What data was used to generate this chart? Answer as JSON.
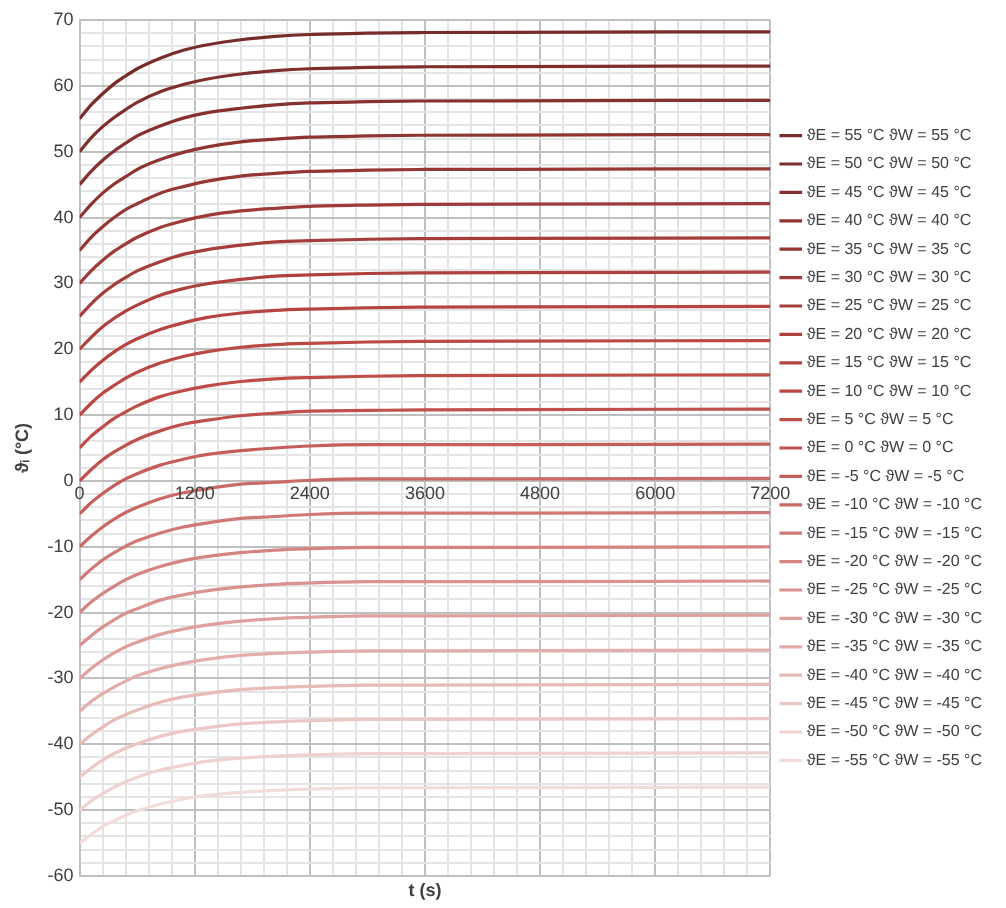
{
  "chart_data": {
    "type": "line",
    "xlabel": "t (s)",
    "ylabel": "ϑᵢ (°C)",
    "legend": "right",
    "grid": true,
    "marker": "none",
    "line_style": "solid",
    "x": [
      0,
      120,
      240,
      360,
      480,
      600,
      840,
      1080,
      1320,
      1680,
      2040,
      2400,
      3000,
      3600,
      7200
    ],
    "xlim": [
      0,
      7200
    ],
    "ylim": [
      -60,
      70
    ],
    "xticks": [
      0,
      {
        "value": 240,
        "label": null
      },
      {
        "value": 480,
        "label": null
      },
      {
        "value": 720,
        "label": null
      },
      {
        "value": 960,
        "label": null
      },
      1200,
      {
        "value": 1440,
        "label": null
      },
      {
        "value": 1680,
        "label": null
      },
      {
        "value": 1920,
        "label": null
      },
      {
        "value": 2160,
        "label": null
      },
      2400,
      {
        "value": 2640,
        "label": null
      },
      {
        "value": 2880,
        "label": null
      },
      {
        "value": 3120,
        "label": null
      },
      {
        "value": 3360,
        "label": null
      },
      3600,
      {
        "value": 3840,
        "label": null
      },
      {
        "value": 4080,
        "label": null
      },
      {
        "value": 4320,
        "label": null
      },
      {
        "value": 4560,
        "label": null
      },
      4800,
      {
        "value": 5040,
        "label": null
      },
      {
        "value": 5280,
        "label": null
      },
      {
        "value": 5520,
        "label": null
      },
      {
        "value": 5760,
        "label": null
      },
      6000,
      {
        "value": 6240,
        "label": null
      },
      {
        "value": 6480,
        "label": null
      },
      {
        "value": 6720,
        "label": null
      },
      {
        "value": 6960,
        "label": null
      },
      7200
    ],
    "yticks": [
      -60,
      {
        "value": -58,
        "label": null
      },
      {
        "value": -56,
        "label": null
      },
      {
        "value": -54,
        "label": null
      },
      {
        "value": -52,
        "label": null
      },
      -50,
      {
        "value": -48,
        "label": null
      },
      {
        "value": -46,
        "label": null
      },
      {
        "value": -44,
        "label": null
      },
      {
        "value": -42,
        "label": null
      },
      -40,
      {
        "value": -38,
        "label": null
      },
      {
        "value": -36,
        "label": null
      },
      {
        "value": -34,
        "label": null
      },
      {
        "value": -32,
        "label": null
      },
      -30,
      {
        "value": -28,
        "label": null
      },
      {
        "value": -26,
        "label": null
      },
      {
        "value": -24,
        "label": null
      },
      {
        "value": -22,
        "label": null
      },
      -20,
      {
        "value": -18,
        "label": null
      },
      {
        "value": -16,
        "label": null
      },
      {
        "value": -14,
        "label": null
      },
      {
        "value": -12,
        "label": null
      },
      -10,
      {
        "value": -8,
        "label": null
      },
      {
        "value": -6,
        "label": null
      },
      {
        "value": -4,
        "label": null
      },
      {
        "value": -2,
        "label": null
      },
      0,
      {
        "value": 2,
        "label": null
      },
      {
        "value": 4,
        "label": null
      },
      {
        "value": 6,
        "label": null
      },
      {
        "value": 8,
        "label": null
      },
      10,
      {
        "value": 12,
        "label": null
      },
      {
        "value": 14,
        "label": null
      },
      {
        "value": 16,
        "label": null
      },
      {
        "value": 18,
        "label": null
      },
      20,
      {
        "value": 22,
        "label": null
      },
      {
        "value": 24,
        "label": null
      },
      {
        "value": 26,
        "label": null
      },
      {
        "value": 28,
        "label": null
      },
      30,
      {
        "value": 32,
        "label": null
      },
      {
        "value": 34,
        "label": null
      },
      {
        "value": 36,
        "label": null
      },
      {
        "value": 38,
        "label": null
      },
      40,
      {
        "value": 42,
        "label": null
      },
      {
        "value": 44,
        "label": null
      },
      {
        "value": 46,
        "label": null
      },
      {
        "value": 48,
        "label": null
      },
      50,
      {
        "value": 52,
        "label": null
      },
      {
        "value": 54,
        "label": null
      },
      {
        "value": 56,
        "label": null
      },
      {
        "value": 58,
        "label": null
      },
      60,
      {
        "value": 62,
        "label": null
      },
      {
        "value": 64,
        "label": null
      },
      {
        "value": 66,
        "label": null
      },
      {
        "value": 68,
        "label": null
      },
      70
    ],
    "series": [
      {
        "name": "ϑE = 55 °C ϑW = 55 °C",
        "color": "#772c2a",
        "values": [
          55,
          57.1,
          58.8,
          60.3,
          61.5,
          62.6,
          64.2,
          65.4,
          66.2,
          67,
          67.5,
          67.8,
          68,
          68.1,
          68.2
        ]
      },
      {
        "name": "ϑE = 50 °C ϑW = 50 °C",
        "color": "#7e2e2c",
        "values": [
          50,
          52.1,
          53.8,
          55.2,
          56.4,
          57.5,
          59.1,
          60.2,
          61,
          61.8,
          62.3,
          62.6,
          62.8,
          62.9,
          63
        ]
      },
      {
        "name": "ϑE = 45 °C ϑW = 45 °C",
        "color": "#86312f",
        "values": [
          45,
          47,
          48.7,
          50.1,
          51.3,
          52.4,
          53.9,
          55.1,
          55.9,
          56.6,
          57.1,
          57.4,
          57.6,
          57.7,
          57.8
        ]
      },
      {
        "name": "ϑE = 40 °C ϑW = 40 °C",
        "color": "#8e3431",
        "values": [
          40,
          42,
          43.7,
          45.1,
          46.2,
          47.3,
          48.8,
          49.9,
          50.7,
          51.5,
          51.9,
          52.2,
          52.4,
          52.5,
          52.6
        ]
      },
      {
        "name": "ϑE = 35 °C ϑW = 35 °C",
        "color": "#963734",
        "values": [
          35,
          37,
          38.6,
          40,
          41.2,
          42.1,
          43.7,
          44.7,
          45.5,
          46.3,
          46.7,
          47,
          47.2,
          47.3,
          47.4
        ]
      },
      {
        "name": "ϑE = 30 °C ϑW = 30 °C",
        "color": "#9e3a37",
        "values": [
          30,
          31.9,
          33.5,
          34.9,
          36,
          37,
          38.5,
          39.5,
          40.3,
          41,
          41.4,
          41.7,
          41.9,
          42,
          42.1
        ]
      },
      {
        "name": "ϑE = 25 °C ϑW = 25 °C",
        "color": "#a63d3a",
        "values": [
          25,
          26.9,
          28.5,
          29.8,
          30.9,
          31.9,
          33.3,
          34.4,
          35.1,
          35.8,
          36.3,
          36.5,
          36.7,
          36.8,
          36.9
        ]
      },
      {
        "name": "ϑE = 20 °C ϑW = 20 °C",
        "color": "#ae413d",
        "values": [
          20,
          21.8,
          23.4,
          24.7,
          25.8,
          26.7,
          28.2,
          29.2,
          29.9,
          30.6,
          31.1,
          31.3,
          31.5,
          31.6,
          31.7
        ]
      },
      {
        "name": "ϑE = 15 °C ϑW = 15 °C",
        "color": "#b54440",
        "values": [
          15,
          16.8,
          18.3,
          19.6,
          20.7,
          21.6,
          23,
          24,
          24.8,
          25.5,
          25.9,
          26.1,
          26.3,
          26.4,
          26.5
        ]
      },
      {
        "name": "ϑE = 10 °C ϑW = 10 °C",
        "color": "#bb4843",
        "values": [
          10,
          11.8,
          13.3,
          14.5,
          15.6,
          16.5,
          17.9,
          18.9,
          19.6,
          20.3,
          20.7,
          20.9,
          21.1,
          21.2,
          21.3
        ]
      },
      {
        "name": "ϑE = 5 °C ϑW = 5 °C",
        "color": "#c04c47",
        "values": [
          5,
          6.8,
          8.2,
          9.5,
          10.5,
          11.4,
          12.8,
          13.7,
          14.4,
          15.1,
          15.5,
          15.7,
          15.9,
          16,
          16.1
        ]
      },
      {
        "name": "ϑE = 0 °C ϑW = 0 °C",
        "color": "#c0504d",
        "values": [
          0,
          1.7,
          3.2,
          4.4,
          5.4,
          6.3,
          7.6,
          8.6,
          9.2,
          9.9,
          10.3,
          10.6,
          10.7,
          10.8,
          10.9
        ]
      },
      {
        "name": "ϑE = -5 °C ϑW = -5 °C",
        "color": "#c55d5a",
        "values": [
          -5,
          -3.3,
          -1.9,
          -0.7,
          0.3,
          1.1,
          2.4,
          3.3,
          4,
          4.6,
          5,
          5.3,
          5.5,
          5.5,
          5.6
        ]
      },
      {
        "name": "ϑE = -10 °C ϑW = -10 °C",
        "color": "#ca6a67",
        "values": [
          -10,
          -8.4,
          -7,
          -5.8,
          -4.8,
          -4,
          -2.7,
          -1.8,
          -1.2,
          -0.5,
          -0.2,
          0.1,
          0.3,
          0.3,
          0.4
        ]
      },
      {
        "name": "ϑE = -15 °C ϑW = -15 °C",
        "color": "#cf7875",
        "values": [
          -15,
          -13.4,
          -12,
          -10.9,
          -9.9,
          -9.1,
          -7.9,
          -7,
          -6.4,
          -5.7,
          -5.4,
          -5.1,
          -4.9,
          -4.9,
          -4.8
        ]
      },
      {
        "name": "ϑE = -20 °C ϑW = -20 °C",
        "color": "#d48582",
        "values": [
          -20,
          -18.4,
          -17.1,
          -16,
          -15,
          -14.2,
          -13,
          -12.1,
          -11.5,
          -10.9,
          -10.5,
          -10.3,
          -10.1,
          -10.1,
          -10
        ]
      },
      {
        "name": "ϑE = -25 °C ϑW = -25 °C",
        "color": "#d99290",
        "values": [
          -25,
          -23.5,
          -22.2,
          -21.1,
          -20.1,
          -19.4,
          -18.1,
          -17.3,
          -16.7,
          -16.1,
          -15.7,
          -15.5,
          -15.3,
          -15.3,
          -15.2
        ]
      },
      {
        "name": "ϑE = -30 °C ϑW = -30 °C",
        "color": "#de9f9d",
        "values": [
          -30,
          -28.5,
          -27.2,
          -26.1,
          -25.2,
          -24.5,
          -23.3,
          -22.5,
          -21.9,
          -21.3,
          -20.9,
          -20.7,
          -20.5,
          -20.5,
          -20.4
        ]
      },
      {
        "name": "ϑE = -35 °C ϑW = -35 °C",
        "color": "#e3adab",
        "values": [
          -35,
          -33.5,
          -32.3,
          -31.3,
          -30.4,
          -29.6,
          -28.5,
          -27.7,
          -27.1,
          -26.5,
          -26.2,
          -26,
          -25.8,
          -25.8,
          -25.7
        ]
      },
      {
        "name": "ϑE = -40 °C ϑW = -40 °C",
        "color": "#e8bab8",
        "values": [
          -40,
          -38.6,
          -37.4,
          -36.3,
          -35.5,
          -34.8,
          -33.6,
          -32.8,
          -32.3,
          -31.7,
          -31.4,
          -31.2,
          -31,
          -31,
          -30.9
        ]
      },
      {
        "name": "ϑE = -45 °C ϑW = -45 °C",
        "color": "#ecc7c6",
        "values": [
          -45,
          -43.6,
          -42.4,
          -41.4,
          -40.6,
          -39.9,
          -38.8,
          -38,
          -37.5,
          -36.9,
          -36.6,
          -36.4,
          -36.2,
          -36.2,
          -36.1
        ]
      },
      {
        "name": "ϑE = -50 °C ϑW = -50 °C",
        "color": "#efd1d0",
        "values": [
          -50,
          -48.6,
          -47.5,
          -46.5,
          -45.7,
          -45,
          -43.9,
          -43.2,
          -42.6,
          -42.1,
          -41.8,
          -41.6,
          -41.4,
          -41.4,
          -41.3
        ]
      },
      {
        "name": "ϑE = -55 °C ϑW = -55 °C",
        "color": "#f2dcdb",
        "values": [
          -55,
          -53.7,
          -52.5,
          -51.6,
          -50.8,
          -50.1,
          -49.1,
          -48.3,
          -47.8,
          -47.3,
          -47,
          -46.8,
          -46.6,
          -46.6,
          -46.5
        ]
      }
    ]
  }
}
